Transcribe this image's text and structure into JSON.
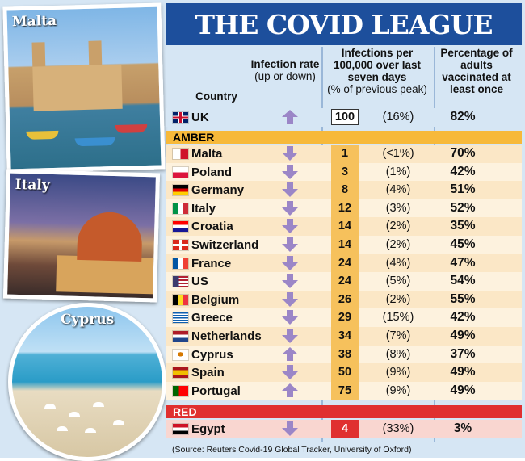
{
  "title": "THE COVID LEAGUE",
  "photos": {
    "malta": "Malta",
    "italy": "Italy",
    "cyprus": "Cyprus"
  },
  "headers": {
    "country": "Country",
    "rate_title": "Infection rate",
    "rate_sub": "(up or down)",
    "infections_title": "Infections per 100,000 over last seven days",
    "infections_sub": "(% of previous peak)",
    "vaccinated": "Percentage of adults vaccinated at least once"
  },
  "uk": {
    "country": "UK",
    "trend": "up",
    "infections": "100",
    "peak": "(16%)",
    "vaccinated": "82%",
    "flag": "uk"
  },
  "amber_label": "AMBER",
  "amber": [
    {
      "country": "Malta",
      "trend": "down",
      "infections": "1",
      "peak": "(<1%)",
      "vaccinated": "70%",
      "flag": "malta"
    },
    {
      "country": "Poland",
      "trend": "down",
      "infections": "3",
      "peak": "(1%)",
      "vaccinated": "42%",
      "flag": "poland"
    },
    {
      "country": "Germany",
      "trend": "down",
      "infections": "8",
      "peak": "(4%)",
      "vaccinated": "51%",
      "flag": "germany"
    },
    {
      "country": "Italy",
      "trend": "down",
      "infections": "12",
      "peak": "(3%)",
      "vaccinated": "52%",
      "flag": "italy"
    },
    {
      "country": "Croatia",
      "trend": "down",
      "infections": "14",
      "peak": "(2%)",
      "vaccinated": "35%",
      "flag": "croatia"
    },
    {
      "country": "Switzerland",
      "trend": "down",
      "infections": "14",
      "peak": "(2%)",
      "vaccinated": "45%",
      "flag": "switzerland"
    },
    {
      "country": "France",
      "trend": "down",
      "infections": "24",
      "peak": "(4%)",
      "vaccinated": "47%",
      "flag": "france"
    },
    {
      "country": "US",
      "trend": "down",
      "infections": "24",
      "peak": "(5%)",
      "vaccinated": "54%",
      "flag": "us"
    },
    {
      "country": "Belgium",
      "trend": "down",
      "infections": "26",
      "peak": "(2%)",
      "vaccinated": "55%",
      "flag": "belgium"
    },
    {
      "country": "Greece",
      "trend": "down",
      "infections": "29",
      "peak": "(15%)",
      "vaccinated": "42%",
      "flag": "greece"
    },
    {
      "country": "Netherlands",
      "trend": "down",
      "infections": "34",
      "peak": "(7%)",
      "vaccinated": "49%",
      "flag": "netherlands"
    },
    {
      "country": "Cyprus",
      "trend": "up",
      "infections": "38",
      "peak": "(8%)",
      "vaccinated": "37%",
      "flag": "cyprus"
    },
    {
      "country": "Spain",
      "trend": "down",
      "infections": "50",
      "peak": "(9%)",
      "vaccinated": "49%",
      "flag": "spain"
    },
    {
      "country": "Portugal",
      "trend": "up",
      "infections": "75",
      "peak": "(9%)",
      "vaccinated": "49%",
      "flag": "portugal"
    }
  ],
  "red_label": "RED",
  "red": [
    {
      "country": "Egypt",
      "trend": "down",
      "infections": "4",
      "peak": "(33%)",
      "vaccinated": "3%",
      "flag": "egypt"
    }
  ],
  "source": "(Source: Reuters Covid-19 Global Tracker, University of Oxford)",
  "colors": {
    "title_bg": "#1d4f9c",
    "amber": "#f7b93a",
    "red": "#e03030",
    "arrow": "#9b86c7",
    "number_box": "#f6c15c"
  }
}
